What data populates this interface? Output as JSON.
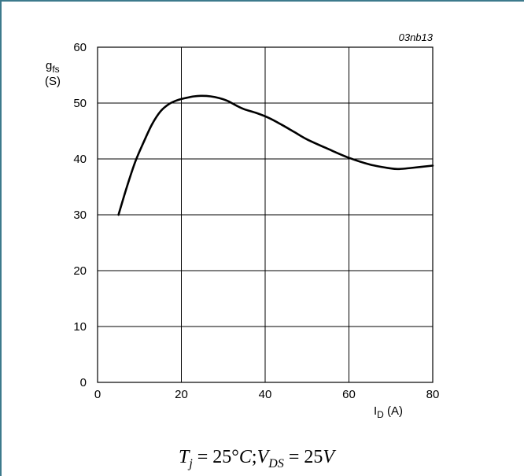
{
  "chart_data": {
    "type": "line",
    "figure_code": "03nb13",
    "ylabel_line1": "g",
    "ylabel_sub": "fs",
    "ylabel_line2": "(S)",
    "xlabel_main": "I",
    "xlabel_sub": "D",
    "xlabel_unit": " (A)",
    "xlim": [
      0,
      80
    ],
    "ylim": [
      0,
      60
    ],
    "x_ticks": [
      0,
      20,
      40,
      60,
      80
    ],
    "y_ticks": [
      0,
      10,
      20,
      30,
      40,
      50,
      60
    ],
    "grid": true,
    "series": [
      {
        "x": [
          5,
          7,
          9,
          11,
          13,
          15,
          17,
          19,
          21,
          23,
          25,
          27,
          29,
          31,
          33,
          35,
          38,
          41,
          44,
          47,
          50,
          55,
          60,
          65,
          70,
          72,
          75,
          80
        ],
        "y": [
          30,
          35,
          39.5,
          43,
          46.2,
          48.5,
          49.8,
          50.5,
          50.9,
          51.2,
          51.3,
          51.2,
          50.9,
          50.4,
          49.6,
          48.9,
          48.2,
          47.3,
          46.1,
          44.8,
          43.5,
          41.8,
          40.2,
          39,
          38.3,
          38.2,
          38.4,
          38.8
        ]
      }
    ]
  },
  "conditions": {
    "t": "T",
    "t_sub": "j",
    "t_val": " = 25°",
    "c": "C",
    "sep": ";",
    "v": "V",
    "v_sub": "DS",
    "v_val": " = 25",
    "v_unit": "V"
  }
}
